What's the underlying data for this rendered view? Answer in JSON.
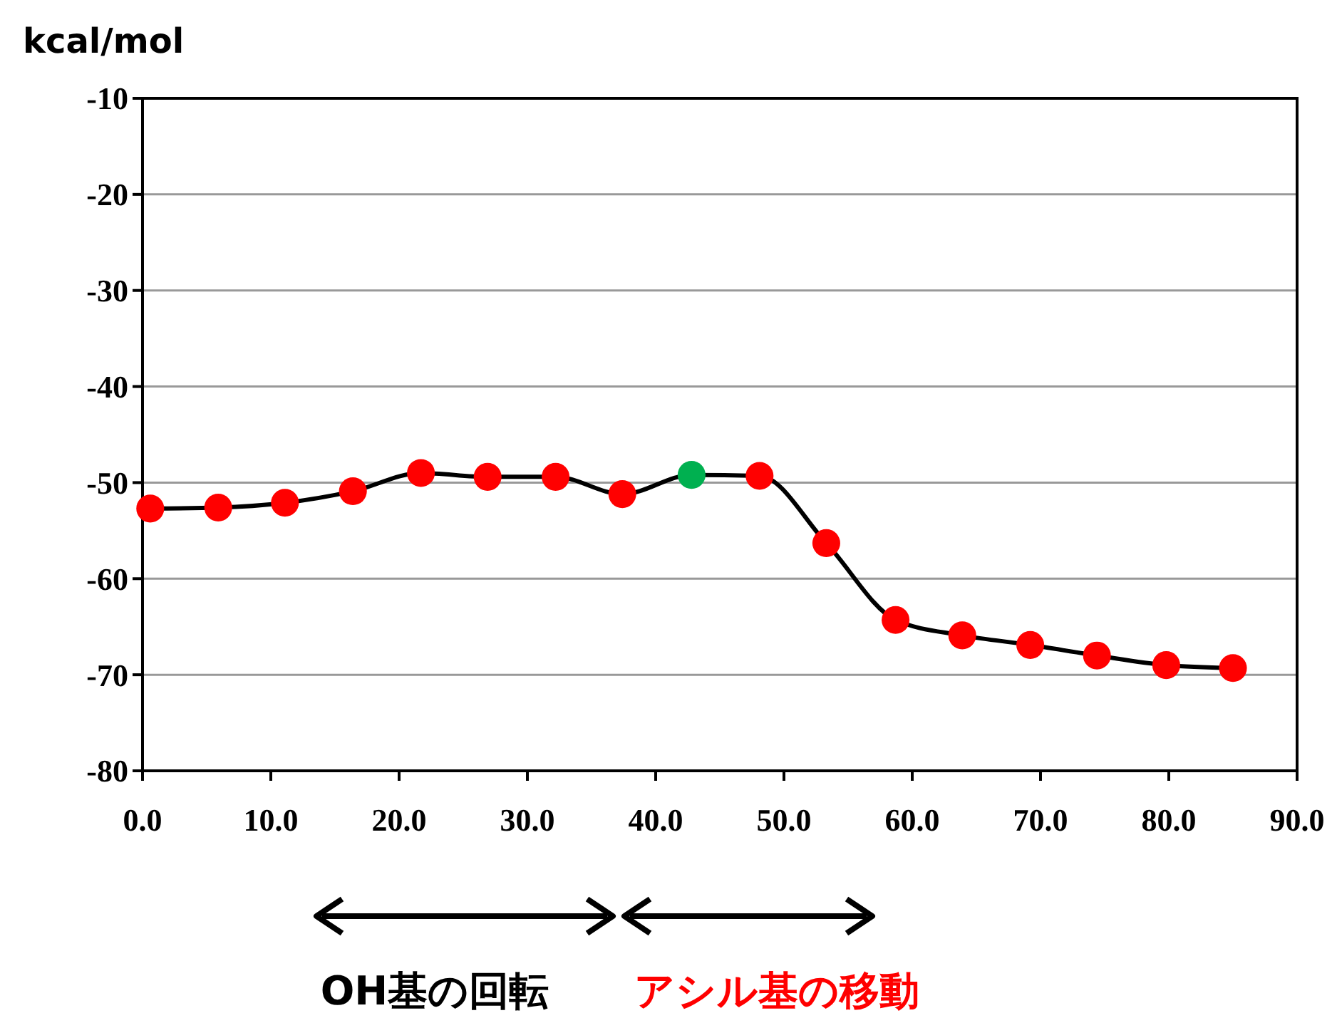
{
  "chart_data": {
    "type": "line",
    "ylabel": "kcal/mol",
    "xlim": [
      0,
      90
    ],
    "xticks": [
      {
        "value": 0,
        "label": "0.0"
      },
      {
        "value": 10,
        "label": "10.0"
      },
      {
        "value": 20,
        "label": "20.0"
      },
      {
        "value": 30,
        "label": "30.0"
      },
      {
        "value": 40,
        "label": "40.0"
      },
      {
        "value": 50,
        "label": "50.0"
      },
      {
        "value": 60,
        "label": "60.0"
      },
      {
        "value": 70,
        "label": "70.0"
      },
      {
        "value": 80,
        "label": "80.0"
      },
      {
        "value": 90,
        "label": "90.0"
      }
    ],
    "ylim": [
      -80,
      -10
    ],
    "yticks": [
      -80,
      -70,
      -60,
      -50,
      -40,
      -30,
      -20,
      -10
    ],
    "grid": "y",
    "marker": "circle",
    "series": [
      {
        "color": "#000000",
        "x": [
          0.6,
          5.9,
          11.1,
          16.4,
          21.7,
          26.9,
          32.2,
          37.4,
          42.8,
          48.1,
          53.3,
          58.7,
          63.9,
          69.2,
          74.4,
          79.8,
          85.0
        ],
        "values": [
          -52.7,
          -52.6,
          -52.1,
          -50.9,
          -49.0,
          -49.4,
          -49.4,
          -51.2,
          -49.2,
          -49.3,
          -56.3,
          -64.3,
          -65.9,
          -66.9,
          -68.0,
          -69.0,
          -69.3
        ],
        "colors": [
          "#ff0000",
          "#ff0000",
          "#ff0000",
          "#ff0000",
          "#ff0000",
          "#ff0000",
          "#ff0000",
          "#ff0000",
          "#00b050",
          "#ff0000",
          "#ff0000",
          "#ff0000",
          "#ff0000",
          "#ff0000",
          "#ff0000",
          "#ff0000",
          "#ff0000"
        ]
      }
    ],
    "annotations": [
      "OH基の回転",
      "アシル基の移動"
    ]
  }
}
